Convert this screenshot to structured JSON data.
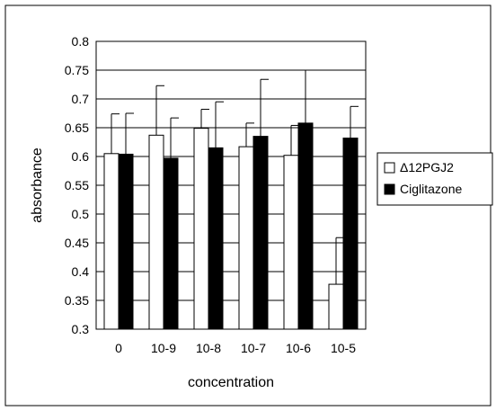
{
  "chart_data": {
    "type": "bar",
    "title": "",
    "xlabel": "concentration",
    "ylabel": "absorbance",
    "categories": [
      "0",
      "10-9",
      "10-8",
      "10-7",
      "10-6",
      "10-5"
    ],
    "ylim": [
      0.3,
      0.8
    ],
    "yticks": [
      "0.8",
      "0.75",
      "0.7",
      "0.65",
      "0.6",
      "0.55",
      "0.5",
      "0.45",
      "0.4",
      "0.35",
      "0.3"
    ],
    "grid": true,
    "legend_position": "right",
    "series": [
      {
        "name": "Δ12PGJ2",
        "fill": "#ffffff",
        "values": [
          0.605,
          0.637,
          0.649,
          0.617,
          0.602,
          0.378
        ],
        "errors": [
          0.069,
          0.086,
          0.033,
          0.041,
          0.052,
          0.081
        ]
      },
      {
        "name": "Ciglitazone",
        "fill": "#000000",
        "values": [
          0.604,
          0.597,
          0.615,
          0.635,
          0.658,
          0.632
        ],
        "errors": [
          0.071,
          0.07,
          0.08,
          0.099,
          0.092,
          0.055
        ]
      }
    ]
  }
}
